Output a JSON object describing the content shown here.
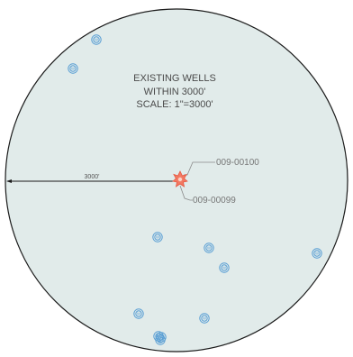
{
  "map": {
    "title_lines": [
      "EXISTING WELLS",
      "WITHIN 3000'",
      "SCALE: 1\"=3000'"
    ],
    "scale_bar_label": "3000'",
    "subject_wells": [
      {
        "label": "009-00100",
        "icon": "star-burst-well-icon",
        "color": "#e8553e"
      },
      {
        "label": "009-00099",
        "icon": "star-burst-well-icon",
        "color": "#e8553e"
      }
    ],
    "existing_well_count": 11,
    "existing_well_icon": "circled-w-well-icon",
    "existing_well_glyph": "W",
    "colors": {
      "circle_fill": "#e1ebea",
      "circle_stroke": "#1a1a1a",
      "well_symbol": "#5a9fd4",
      "leader_line": "#8a8a8a",
      "subject_well": "#e8553e"
    }
  }
}
